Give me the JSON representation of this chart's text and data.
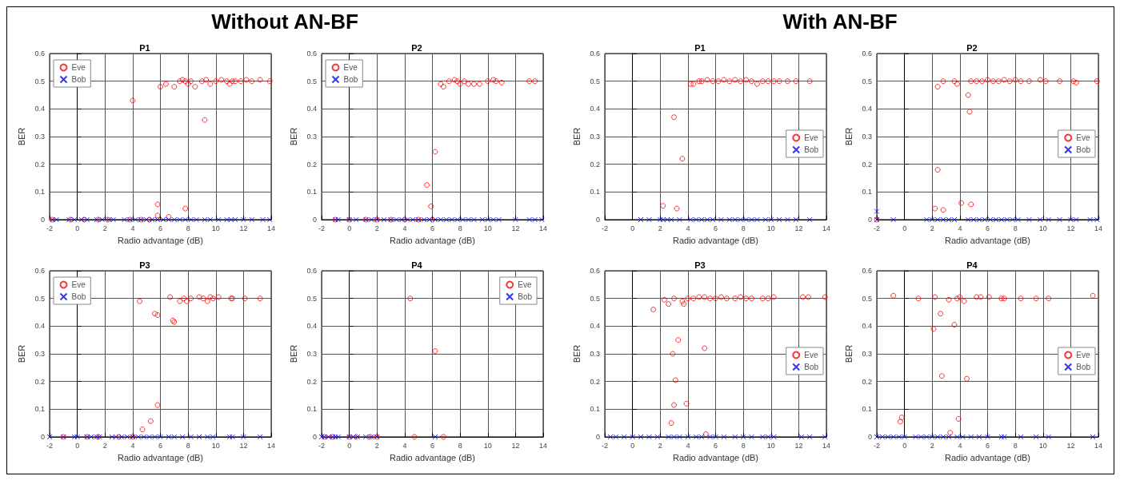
{
  "chart_data": [
    {
      "type": "scatter",
      "title": "P1",
      "annotations": [
        "Without AN-BF"
      ],
      "xlabel": "Radio advantage (dB)",
      "ylabel": "BER",
      "xlim": [
        -2,
        14
      ],
      "xticks": [
        -2,
        0,
        2,
        4,
        6,
        8,
        10,
        12,
        14
      ],
      "ylim": [
        0,
        0.6
      ],
      "yticks": [
        0,
        0.1,
        0.2,
        0.3,
        0.4,
        0.5,
        0.6
      ],
      "grid": true,
      "legend": "top left",
      "series": [
        {
          "name": "Eve",
          "color": "#ff0000",
          "marker": "circle",
          "x": [
            6.0,
            6.4,
            7.0,
            7.4,
            7.6,
            7.8,
            8.0,
            8.2,
            8.5,
            9.0,
            9.3,
            9.6,
            10.0,
            10.4,
            10.8,
            11.0,
            11.2,
            11.4,
            11.8,
            12.2,
            12.6,
            13.2,
            13.9,
            4.0,
            9.2,
            5.8,
            5.8,
            6.6,
            7.8,
            -1.8,
            -0.5,
            0.5,
            1.5,
            2.2,
            3.8,
            4.6,
            5.2
          ],
          "values": [
            0.48,
            0.49,
            0.48,
            0.5,
            0.505,
            0.5,
            0.49,
            0.5,
            0.48,
            0.5,
            0.505,
            0.49,
            0.5,
            0.505,
            0.5,
            0.49,
            0.5,
            0.5,
            0.5,
            0.505,
            0.5,
            0.505,
            0.5,
            0.43,
            0.36,
            0.055,
            0.015,
            0.01,
            0.04,
            0,
            0,
            0,
            0,
            0,
            0,
            0,
            0
          ]
        },
        {
          "name": "Bob",
          "color": "#0000ff",
          "marker": "cross",
          "x": [
            -1.8,
            -1.5,
            -0.6,
            -0.2,
            0.3,
            0.7,
            1.4,
            1.8,
            2.3,
            2.6,
            3.4,
            3.8,
            4.2,
            4.6,
            5.0,
            5.4,
            5.8,
            6.2,
            6.6,
            7.0,
            7.4,
            7.8,
            8.2,
            8.6,
            9.2,
            9.6,
            10.2,
            10.8,
            11.1,
            11.4,
            12.0,
            12.6,
            13.4,
            13.9
          ],
          "values": [
            0,
            0,
            0,
            0,
            0,
            0,
            0,
            0,
            0,
            0,
            0,
            0,
            0,
            0,
            0,
            0,
            0,
            0,
            0,
            0,
            0,
            0,
            0,
            0,
            0,
            0,
            0,
            0,
            0,
            0,
            0,
            0,
            0,
            0
          ]
        }
      ]
    },
    {
      "type": "scatter",
      "title": "P2",
      "xlabel": "Radio advantage (dB)",
      "ylabel": "BER",
      "xlim": [
        -2,
        14
      ],
      "xticks": [
        -2,
        0,
        2,
        4,
        6,
        8,
        10,
        12,
        14
      ],
      "ylim": [
        0,
        0.6
      ],
      "yticks": [
        0,
        0.1,
        0.2,
        0.3,
        0.4,
        0.5,
        0.6
      ],
      "grid": true,
      "legend": "top left",
      "series": [
        {
          "name": "Eve",
          "color": "#ff0000",
          "marker": "circle",
          "x": [
            6.6,
            6.8,
            7.2,
            7.6,
            7.8,
            8.0,
            8.3,
            8.6,
            9.0,
            9.4,
            10.0,
            10.4,
            10.6,
            11.0,
            13.0,
            13.4,
            5.6,
            6.2,
            5.9,
            -1.0,
            0.0,
            1.2,
            2.0,
            3.0,
            4.0,
            5.0,
            6.0
          ],
          "values": [
            0.49,
            0.48,
            0.5,
            0.505,
            0.5,
            0.49,
            0.5,
            0.49,
            0.49,
            0.49,
            0.5,
            0.505,
            0.5,
            0.495,
            0.5,
            0.5,
            0.125,
            0.245,
            0.048,
            0,
            0,
            0,
            0,
            0,
            0,
            0,
            0
          ]
        },
        {
          "name": "Bob",
          "color": "#0000ff",
          "marker": "cross",
          "x": [
            -1.0,
            -0.8,
            0.0,
            0.5,
            1.2,
            1.6,
            2.0,
            2.5,
            3.0,
            3.4,
            3.8,
            4.2,
            4.6,
            5.0,
            5.4,
            5.8,
            6.2,
            6.6,
            7.0,
            7.4,
            7.8,
            8.2,
            8.6,
            9.0,
            9.6,
            10.0,
            10.4,
            10.8,
            12.0,
            13.0,
            13.4,
            13.9
          ],
          "values": [
            0,
            0,
            0,
            0,
            0,
            0,
            0,
            0,
            0,
            0,
            0,
            0,
            0,
            0,
            0,
            0,
            0,
            0,
            0,
            0,
            0,
            0,
            0,
            0,
            0,
            0,
            0,
            0,
            0,
            0,
            0,
            0
          ]
        }
      ]
    },
    {
      "type": "scatter",
      "title": "P3",
      "xlabel": "Radio advantage (dB)",
      "ylabel": "BER",
      "xlim": [
        -2,
        14
      ],
      "xticks": [
        -2,
        0,
        2,
        4,
        6,
        8,
        10,
        12,
        14
      ],
      "ylim": [
        0,
        0.6
      ],
      "yticks": [
        0,
        0.1,
        0.2,
        0.3,
        0.4,
        0.5,
        0.6
      ],
      "grid": true,
      "legend": "top left",
      "series": [
        {
          "name": "Eve",
          "color": "#ff0000",
          "marker": "circle",
          "x": [
            4.5,
            5.6,
            5.8,
            6.7,
            6.9,
            7.0,
            7.4,
            7.7,
            7.9,
            8.2,
            8.8,
            9.1,
            9.4,
            9.6,
            9.8,
            10.2,
            11.1,
            11.2,
            12.1,
            13.2,
            5.8,
            5.3,
            4.7,
            -1.0,
            0.7,
            1.5,
            3.0,
            4.0
          ],
          "values": [
            0.49,
            0.445,
            0.44,
            0.505,
            0.42,
            0.415,
            0.49,
            0.5,
            0.49,
            0.5,
            0.505,
            0.5,
            0.49,
            0.505,
            0.5,
            0.505,
            0.5,
            0.5,
            0.5,
            0.5,
            0.115,
            0.057,
            0.027,
            0,
            0,
            0,
            0,
            0
          ]
        },
        {
          "name": "Bob",
          "color": "#0000ff",
          "marker": "cross",
          "x": [
            -2.0,
            -1.0,
            -0.2,
            0.0,
            0.7,
            1.0,
            1.4,
            1.6,
            2.5,
            2.8,
            3.2,
            3.6,
            4.0,
            4.4,
            4.8,
            5.2,
            5.6,
            6.0,
            6.6,
            7.0,
            7.6,
            8.2,
            8.8,
            9.4,
            9.8,
            11.0,
            11.2,
            12.0,
            13.2
          ],
          "values": [
            0,
            0,
            0,
            0,
            0,
            0,
            0,
            0,
            0,
            0,
            0,
            0,
            0,
            0,
            0,
            0,
            0,
            0,
            0,
            0,
            0,
            0,
            0,
            0,
            0,
            0,
            0,
            0,
            0
          ]
        }
      ]
    },
    {
      "type": "scatter",
      "title": "P4",
      "xlabel": "Radio advantage (dB)",
      "ylabel": "BER",
      "xlim": [
        -2,
        14
      ],
      "xticks": [
        -2,
        0,
        2,
        4,
        6,
        8,
        10,
        12,
        14
      ],
      "ylim": [
        0,
        0.6
      ],
      "yticks": [
        0,
        0.1,
        0.2,
        0.3,
        0.4,
        0.5,
        0.6
      ],
      "grid": true,
      "legend": "top right",
      "series": [
        {
          "name": "Eve",
          "color": "#ff0000",
          "marker": "circle",
          "x": [
            4.4,
            6.2,
            4.7,
            6.8,
            -1.8,
            -1.2,
            0.0,
            0.5,
            1.5,
            2.0
          ],
          "values": [
            0.5,
            0.31,
            0,
            0,
            0,
            0,
            0,
            0,
            0,
            0
          ]
        },
        {
          "name": "Bob",
          "color": "#0000ff",
          "marker": "cross",
          "x": [
            -2.0,
            -1.8,
            -1.5,
            -1.2,
            -1.0,
            -0.8,
            0.0,
            0.3,
            0.6,
            1.2,
            1.6,
            2.0,
            6.2
          ],
          "values": [
            0,
            0,
            0,
            0,
            0,
            0,
            0,
            0,
            0,
            0,
            0,
            0,
            0
          ]
        }
      ]
    },
    {
      "type": "scatter",
      "title": "P1",
      "annotations": [
        "With AN-BF"
      ],
      "xlabel": "Radio advantage (dB)",
      "ylabel": "BER",
      "xlim": [
        -2,
        14
      ],
      "xticks": [
        -2,
        0,
        2,
        4,
        6,
        8,
        10,
        12,
        14
      ],
      "ylim": [
        0,
        0.6
      ],
      "yticks": [
        0,
        0.1,
        0.2,
        0.3,
        0.4,
        0.5,
        0.6
      ],
      "grid": true,
      "legend": "right",
      "series": [
        {
          "name": "Eve",
          "color": "#ff0000",
          "marker": "circle",
          "x": [
            4.2,
            4.4,
            4.8,
            5.0,
            5.4,
            5.8,
            6.2,
            6.6,
            7.0,
            7.4,
            7.8,
            8.2,
            8.6,
            9.0,
            9.4,
            9.8,
            10.2,
            10.6,
            11.2,
            11.8,
            12.8,
            3.0,
            3.6,
            2.2,
            3.2
          ],
          "values": [
            0.49,
            0.49,
            0.5,
            0.5,
            0.505,
            0.5,
            0.5,
            0.505,
            0.5,
            0.505,
            0.5,
            0.505,
            0.5,
            0.49,
            0.5,
            0.5,
            0.5,
            0.5,
            0.5,
            0.5,
            0.5,
            0.37,
            0.22,
            0.05,
            0.04
          ]
        },
        {
          "name": "Bob",
          "color": "#0000ff",
          "marker": "cross",
          "x": [
            0.6,
            1.2,
            2.0,
            2.2,
            2.5,
            2.8,
            3.4,
            4.2,
            4.6,
            5.0,
            5.4,
            5.8,
            6.4,
            7.0,
            7.4,
            7.8,
            8.2,
            8.6,
            9.0,
            9.6,
            10.0,
            10.6,
            11.2,
            11.8,
            12.8
          ],
          "values": [
            0,
            0,
            0,
            0,
            0,
            0,
            0,
            0,
            0,
            0,
            0,
            0,
            0,
            0,
            0,
            0,
            0,
            0,
            0,
            0,
            0,
            0,
            0,
            0,
            0
          ]
        }
      ]
    },
    {
      "type": "scatter",
      "title": "P2",
      "xlabel": "Radio advantage (dB)",
      "ylabel": "BER",
      "xlim": [
        -2,
        14
      ],
      "xticks": [
        -2,
        0,
        2,
        4,
        6,
        8,
        10,
        12,
        14
      ],
      "ylim": [
        0,
        0.6
      ],
      "yticks": [
        0,
        0.1,
        0.2,
        0.3,
        0.4,
        0.5,
        0.6
      ],
      "grid": true,
      "legend": "right",
      "series": [
        {
          "name": "Eve",
          "color": "#ff0000",
          "marker": "circle",
          "x": [
            2.4,
            2.8,
            3.6,
            3.8,
            4.6,
            4.7,
            4.8,
            5.2,
            5.6,
            6.0,
            6.4,
            6.8,
            7.2,
            7.6,
            8.0,
            8.4,
            9.0,
            9.8,
            10.2,
            11.2,
            12.2,
            12.4,
            13.9,
            2.4,
            2.2,
            2.8,
            4.1,
            4.8,
            -2.0
          ],
          "values": [
            0.48,
            0.5,
            0.5,
            0.49,
            0.45,
            0.39,
            0.5,
            0.5,
            0.5,
            0.505,
            0.5,
            0.5,
            0.505,
            0.5,
            0.505,
            0.5,
            0.5,
            0.505,
            0.5,
            0.5,
            0.5,
            0.495,
            0.5,
            0.18,
            0.04,
            0.035,
            0.06,
            0.055,
            0
          ]
        },
        {
          "name": "Bob",
          "color": "#0000ff",
          "marker": "cross",
          "x": [
            -2.0,
            -2.0,
            -0.8,
            1.6,
            2.0,
            2.4,
            2.8,
            3.2,
            3.6,
            4.6,
            5.0,
            5.4,
            5.8,
            6.2,
            6.6,
            7.0,
            7.4,
            7.8,
            8.2,
            9.0,
            9.8,
            10.4,
            11.2,
            12.0,
            12.4,
            13.4,
            13.9
          ],
          "values": [
            0.03,
            0,
            0,
            0,
            0,
            0,
            0,
            0,
            0,
            0,
            0,
            0,
            0,
            0,
            0,
            0,
            0,
            0,
            0,
            0,
            0,
            0,
            0,
            0,
            0,
            0,
            0
          ]
        }
      ]
    },
    {
      "type": "scatter",
      "title": "P3",
      "xlabel": "Radio advantage (dB)",
      "ylabel": "BER",
      "xlim": [
        -2,
        14
      ],
      "xticks": [
        -2,
        0,
        2,
        4,
        6,
        8,
        10,
        12,
        14
      ],
      "ylim": [
        0,
        0.6
      ],
      "yticks": [
        0,
        0.1,
        0.2,
        0.3,
        0.4,
        0.5,
        0.6
      ],
      "grid": true,
      "legend": "right",
      "series": [
        {
          "name": "Eve",
          "color": "#ff0000",
          "marker": "circle",
          "x": [
            1.5,
            2.3,
            2.6,
            3.0,
            3.6,
            3.7,
            4.0,
            4.4,
            4.8,
            5.2,
            5.6,
            6.0,
            6.4,
            6.8,
            7.4,
            7.8,
            8.2,
            8.6,
            9.4,
            9.8,
            10.2,
            12.3,
            12.7,
            13.9,
            3.3,
            2.9,
            3.1,
            3.0,
            3.9,
            2.8,
            5.2,
            5.3
          ],
          "values": [
            0.46,
            0.495,
            0.48,
            0.5,
            0.49,
            0.48,
            0.5,
            0.5,
            0.505,
            0.505,
            0.5,
            0.5,
            0.505,
            0.5,
            0.5,
            0.505,
            0.5,
            0.5,
            0.5,
            0.5,
            0.505,
            0.505,
            0.505,
            0.505,
            0.35,
            0.3,
            0.205,
            0.115,
            0.12,
            0.05,
            0.32,
            0.01
          ]
        },
        {
          "name": "Bob",
          "color": "#0000ff",
          "marker": "cross",
          "x": [
            -1.6,
            -1.2,
            -0.6,
            0.0,
            0.6,
            1.2,
            1.8,
            2.6,
            3.0,
            3.4,
            4.0,
            4.6,
            5.0,
            5.6,
            6.0,
            6.6,
            7.4,
            8.0,
            8.6,
            9.4,
            9.8,
            10.2,
            12.2,
            12.8,
            13.9
          ],
          "values": [
            0,
            0,
            0,
            0,
            0,
            0,
            0,
            0,
            0,
            0,
            0,
            0,
            0,
            0,
            0,
            0,
            0,
            0,
            0,
            0,
            0,
            0,
            0,
            0,
            0
          ]
        }
      ]
    },
    {
      "type": "scatter",
      "title": "P4",
      "xlabel": "Radio advantage (dB)",
      "ylabel": "BER",
      "xlim": [
        -2,
        14
      ],
      "xticks": [
        -2,
        0,
        2,
        4,
        6,
        8,
        10,
        12,
        14
      ],
      "ylim": [
        0,
        0.6
      ],
      "yticks": [
        0,
        0.1,
        0.2,
        0.3,
        0.4,
        0.5,
        0.6
      ],
      "grid": true,
      "legend": "right",
      "series": [
        {
          "name": "Eve",
          "color": "#ff0000",
          "marker": "circle",
          "x": [
            -0.8,
            1.0,
            2.2,
            3.2,
            3.8,
            4.0,
            4.3,
            5.2,
            5.5,
            6.1,
            7.0,
            7.2,
            8.4,
            9.5,
            10.4,
            13.6,
            2.6,
            2.1,
            3.6,
            2.7,
            4.5,
            -0.3,
            -0.2,
            3.9,
            3.3
          ],
          "values": [
            0.51,
            0.5,
            0.505,
            0.495,
            0.5,
            0.505,
            0.49,
            0.505,
            0.505,
            0.505,
            0.5,
            0.5,
            0.5,
            0.5,
            0.5,
            0.51,
            0.445,
            0.39,
            0.405,
            0.22,
            0.21,
            0.055,
            0.07,
            0.065,
            0.015
          ]
        },
        {
          "name": "Bob",
          "color": "#0000ff",
          "marker": "cross",
          "x": [
            -2.0,
            -1.6,
            -1.2,
            -0.8,
            -0.4,
            0.0,
            0.8,
            1.2,
            1.6,
            2.0,
            2.4,
            2.8,
            3.2,
            3.8,
            4.2,
            4.8,
            5.4,
            6.0,
            7.0,
            7.2,
            8.4,
            9.5,
            10.4,
            13.6
          ],
          "values": [
            0,
            0,
            0,
            0,
            0,
            0,
            0,
            0,
            0,
            0,
            0,
            0,
            0,
            0,
            0,
            0,
            0,
            0,
            0,
            0,
            0,
            0,
            0,
            0
          ]
        }
      ]
    }
  ]
}
